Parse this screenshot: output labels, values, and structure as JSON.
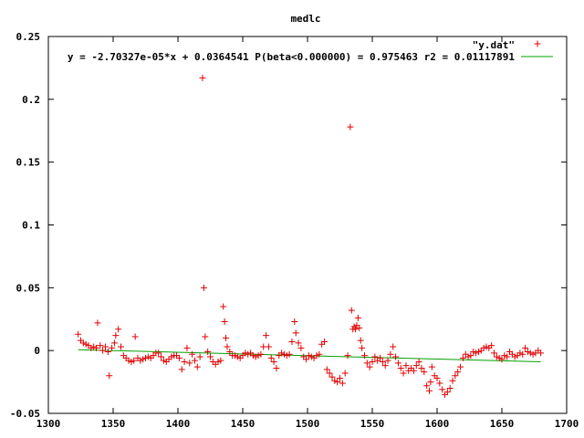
{
  "chart_data": {
    "type": "scatter",
    "title": "medlc",
    "xlabel": "",
    "ylabel": "",
    "xlim": [
      1300,
      1700
    ],
    "ylim": [
      -0.05,
      0.25
    ],
    "xticks": [
      1300,
      1350,
      1400,
      1450,
      1500,
      1550,
      1600,
      1650,
      1700
    ],
    "xtick_labels": [
      "1300",
      "1350",
      "1400",
      "1450",
      "1500",
      "1550",
      "1600",
      "1650",
      "1700"
    ],
    "yticks": [
      -0.05,
      0,
      0.05,
      0.1,
      0.15,
      0.2,
      0.25
    ],
    "ytick_labels": [
      "-0.05",
      "0",
      "0.05",
      "0.1",
      "0.15",
      "0.2",
      "0.25"
    ],
    "grid": false,
    "legend_position": "top-right",
    "series": [
      {
        "name": "\"y.dat\"",
        "kind": "points",
        "marker": "plus",
        "color": "#e00000",
        "x": [
          1323,
          1325,
          1327,
          1329,
          1331,
          1333,
          1335,
          1337,
          1338,
          1340,
          1342,
          1344,
          1346,
          1347,
          1349,
          1351,
          1352,
          1354,
          1356,
          1358,
          1360,
          1362,
          1364,
          1366,
          1367,
          1369,
          1371,
          1373,
          1375,
          1377,
          1379,
          1381,
          1383,
          1385,
          1387,
          1389,
          1391,
          1393,
          1395,
          1397,
          1399,
          1401,
          1403,
          1405,
          1407,
          1409,
          1411,
          1413,
          1415,
          1417,
          1419,
          1420,
          1421,
          1423,
          1425,
          1427,
          1429,
          1431,
          1433,
          1435,
          1436,
          1437,
          1438,
          1440,
          1442,
          1444,
          1446,
          1448,
          1450,
          1452,
          1454,
          1456,
          1458,
          1460,
          1462,
          1464,
          1466,
          1468,
          1470,
          1472,
          1474,
          1476,
          1478,
          1480,
          1482,
          1484,
          1486,
          1488,
          1490,
          1491,
          1493,
          1495,
          1497,
          1499,
          1501,
          1503,
          1505,
          1507,
          1509,
          1511,
          1513,
          1515,
          1517,
          1519,
          1521,
          1523,
          1525,
          1527,
          1529,
          1531,
          1533,
          1534,
          1535,
          1536,
          1537,
          1538,
          1539,
          1540,
          1541,
          1542,
          1544,
          1546,
          1548,
          1550,
          1552,
          1554,
          1556,
          1558,
          1560,
          1562,
          1564,
          1566,
          1568,
          1570,
          1572,
          1574,
          1576,
          1578,
          1580,
          1582,
          1584,
          1586,
          1588,
          1590,
          1592,
          1594,
          1595,
          1596,
          1598,
          1600,
          1602,
          1604,
          1606,
          1608,
          1610,
          1612,
          1614,
          1616,
          1618,
          1620,
          1622,
          1624,
          1626,
          1628,
          1630,
          1632,
          1634,
          1636,
          1638,
          1640,
          1642,
          1644,
          1646,
          1648,
          1650,
          1652,
          1654,
          1656,
          1658,
          1660,
          1662,
          1664,
          1666,
          1668,
          1670,
          1672,
          1674,
          1676,
          1678,
          1680
        ],
        "y": [
          0.013,
          0.008,
          0.006,
          0.005,
          0.004,
          0.002,
          0.003,
          0.002,
          0.022,
          0.004,
          0.0,
          0.003,
          -0.001,
          -0.02,
          0.002,
          0.006,
          0.012,
          0.017,
          0.003,
          -0.004,
          -0.006,
          -0.008,
          -0.009,
          -0.008,
          0.011,
          -0.006,
          -0.008,
          -0.007,
          -0.006,
          -0.005,
          -0.006,
          -0.004,
          -0.002,
          -0.002,
          -0.005,
          -0.008,
          -0.009,
          -0.007,
          -0.005,
          -0.004,
          -0.004,
          -0.006,
          -0.015,
          -0.009,
          0.002,
          -0.01,
          -0.003,
          -0.008,
          -0.013,
          -0.005,
          0.217,
          0.05,
          0.011,
          -0.001,
          -0.005,
          -0.009,
          -0.011,
          -0.009,
          -0.008,
          0.035,
          0.023,
          0.01,
          0.003,
          -0.001,
          -0.004,
          -0.004,
          -0.005,
          -0.006,
          -0.004,
          -0.002,
          -0.003,
          -0.002,
          -0.004,
          -0.005,
          -0.004,
          -0.003,
          0.003,
          0.012,
          0.003,
          -0.006,
          -0.009,
          -0.014,
          -0.004,
          -0.002,
          -0.003,
          -0.004,
          -0.003,
          0.007,
          0.023,
          0.014,
          0.006,
          0.002,
          -0.005,
          -0.007,
          -0.004,
          -0.005,
          -0.006,
          -0.004,
          -0.003,
          0.005,
          0.007,
          -0.015,
          -0.018,
          -0.021,
          -0.024,
          -0.025,
          -0.022,
          -0.026,
          -0.018,
          -0.004,
          0.178,
          0.032,
          0.017,
          0.019,
          0.017,
          0.02,
          0.026,
          0.018,
          0.008,
          0.002,
          -0.004,
          -0.01,
          -0.013,
          -0.009,
          -0.005,
          -0.008,
          -0.006,
          -0.009,
          -0.012,
          -0.008,
          -0.003,
          0.003,
          -0.005,
          -0.01,
          -0.014,
          -0.018,
          -0.012,
          -0.016,
          -0.014,
          -0.016,
          -0.012,
          -0.009,
          -0.014,
          -0.017,
          -0.028,
          -0.032,
          -0.025,
          -0.013,
          -0.02,
          -0.022,
          -0.026,
          -0.031,
          -0.035,
          -0.033,
          -0.03,
          -0.024,
          -0.02,
          -0.017,
          -0.013,
          -0.006,
          -0.003,
          -0.005,
          -0.004,
          -0.001,
          -0.002,
          -0.001,
          0.0,
          0.002,
          0.003,
          0.002,
          0.004,
          -0.002,
          -0.005,
          -0.006,
          -0.007,
          -0.004,
          -0.005,
          -0.001,
          -0.003,
          -0.005,
          -0.004,
          -0.002,
          -0.003,
          0.002,
          -0.001,
          -0.002,
          -0.003,
          -0.002,
          0.0,
          -0.002
        ]
      },
      {
        "name": "y = -2.70327e-05*x + 0.0364541 P(beta<0.000000) = 0.975463 r2 = 0.01117891",
        "kind": "line",
        "color": "#00a000",
        "slope": -2.70327e-05,
        "intercept": 0.0364541,
        "x_range": [
          1323,
          1680
        ]
      }
    ]
  }
}
